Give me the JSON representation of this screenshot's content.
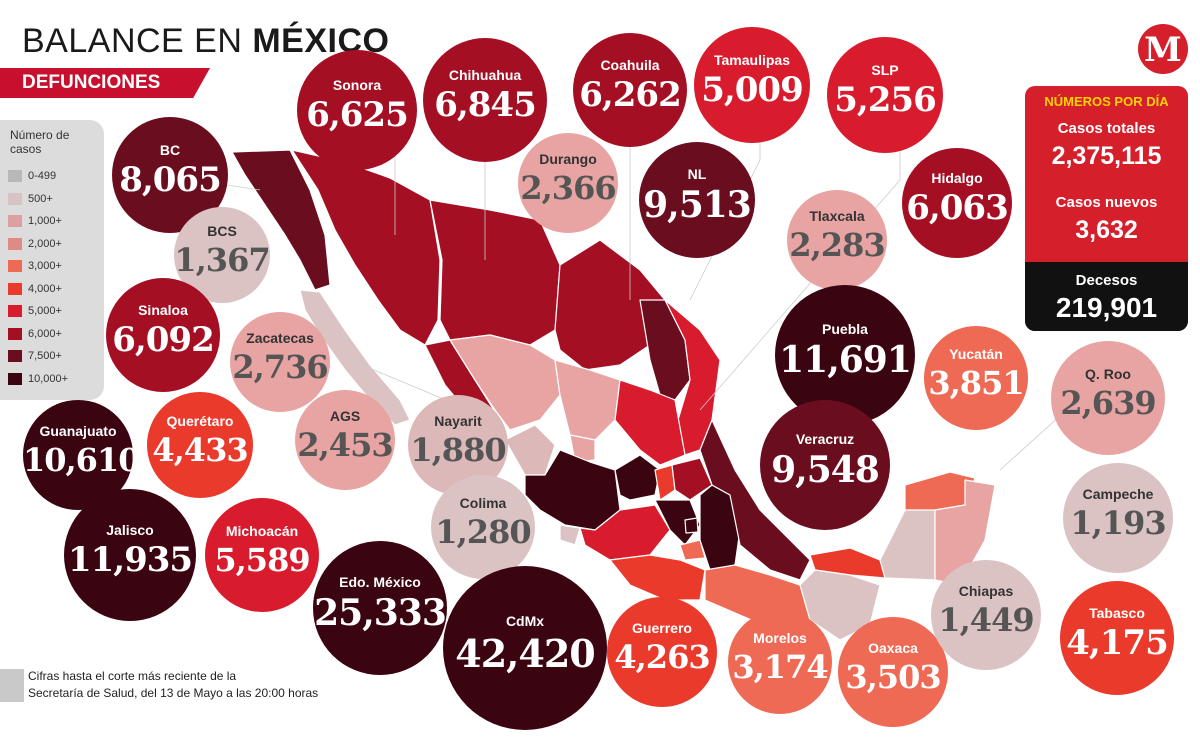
{
  "header": {
    "title_regular": "BALANCE EN ",
    "title_bold": "MÉXICO",
    "subtitle": "DEFUNCIONES"
  },
  "logo": {
    "letter": "M"
  },
  "legend": {
    "title": "Número de casos",
    "items": [
      {
        "label": "0-499",
        "color": "#b8b8b8"
      },
      {
        "label": "500+",
        "color": "#d6c3c3"
      },
      {
        "label": "1,000+",
        "color": "#dca0a2"
      },
      {
        "label": "2,000+",
        "color": "#e08a86"
      },
      {
        "label": "3,000+",
        "color": "#ee6a55"
      },
      {
        "label": "4,000+",
        "color": "#ea3a2c"
      },
      {
        "label": "5,000+",
        "color": "#d81b2d"
      },
      {
        "label": "6,000+",
        "color": "#a50f24"
      },
      {
        "label": "7,500+",
        "color": "#6a0e1f"
      },
      {
        "label": "10,000+",
        "color": "#3a0410"
      }
    ]
  },
  "stats": {
    "header": "NÚMEROS POR DÍA",
    "total_label": "Casos totales",
    "total_value": "2,375,115",
    "new_label": "Casos nuevos",
    "new_value": "3,632",
    "deaths_label": "Decesos",
    "deaths_value": "219,901"
  },
  "footnote": {
    "line1": "Cifras hasta el corte más reciente de la",
    "line2": "Secretaría de Salud, del 13 de Mayo a las 20:00 horas"
  },
  "states": [
    {
      "name": "BC",
      "value": "8,065",
      "color": "#6a0e1f"
    },
    {
      "name": "BCS",
      "value": "1,367",
      "color": "#dcc3c3"
    },
    {
      "name": "Sonora",
      "value": "6,625",
      "color": "#a50f24"
    },
    {
      "name": "Chihuahua",
      "value": "6,845",
      "color": "#a50f24"
    },
    {
      "name": "Coahuila",
      "value": "6,262",
      "color": "#a50f24"
    },
    {
      "name": "Tamaulipas",
      "value": "5,009",
      "color": "#d81b2d"
    },
    {
      "name": "SLP",
      "value": "5,256",
      "color": "#d81b2d"
    },
    {
      "name": "Durango",
      "value": "2,366",
      "color": "#e8a3a3"
    },
    {
      "name": "NL",
      "value": "9,513",
      "color": "#6a0e1f"
    },
    {
      "name": "Hidalgo",
      "value": "6,063",
      "color": "#a50f24"
    },
    {
      "name": "Tlaxcala",
      "value": "2,283",
      "color": "#e8a3a3"
    },
    {
      "name": "Sinaloa",
      "value": "6,092",
      "color": "#a50f24"
    },
    {
      "name": "Zacatecas",
      "value": "2,736",
      "color": "#e8a3a3"
    },
    {
      "name": "Puebla",
      "value": "11,691",
      "color": "#3a0410"
    },
    {
      "name": "Yucatán",
      "value": "3,851",
      "color": "#ee6a55"
    },
    {
      "name": "Q. Roo",
      "value": "2,639",
      "color": "#e8a3a3"
    },
    {
      "name": "Guanajuato",
      "value": "10,610",
      "color": "#3a0410"
    },
    {
      "name": "Querétaro",
      "value": "4,433",
      "color": "#ea3a2c"
    },
    {
      "name": "AGS",
      "value": "2,453",
      "color": "#e8a3a3"
    },
    {
      "name": "Nayarit",
      "value": "1,880",
      "color": "#dcb8b8"
    },
    {
      "name": "Veracruz",
      "value": "9,548",
      "color": "#6a0e1f"
    },
    {
      "name": "Campeche",
      "value": "1,193",
      "color": "#dcc3c3"
    },
    {
      "name": "Jalisco",
      "value": "11,935",
      "color": "#3a0410"
    },
    {
      "name": "Michoacán",
      "value": "5,589",
      "color": "#d81b2d"
    },
    {
      "name": "Colima",
      "value": "1,280",
      "color": "#dcc3c3"
    },
    {
      "name": "Edo. México",
      "value": "25,333",
      "color": "#3a0410"
    },
    {
      "name": "CdMx",
      "value": "42,420",
      "color": "#3a0410"
    },
    {
      "name": "Guerrero",
      "value": "4,263",
      "color": "#ea3a2c"
    },
    {
      "name": "Morelos",
      "value": "3,174",
      "color": "#ee6a55"
    },
    {
      "name": "Oaxaca",
      "value": "3,503",
      "color": "#ee6a55"
    },
    {
      "name": "Chiapas",
      "value": "1,449",
      "color": "#dcc3c3"
    },
    {
      "name": "Tabasco",
      "value": "4,175",
      "color": "#ea3a2c"
    }
  ]
}
